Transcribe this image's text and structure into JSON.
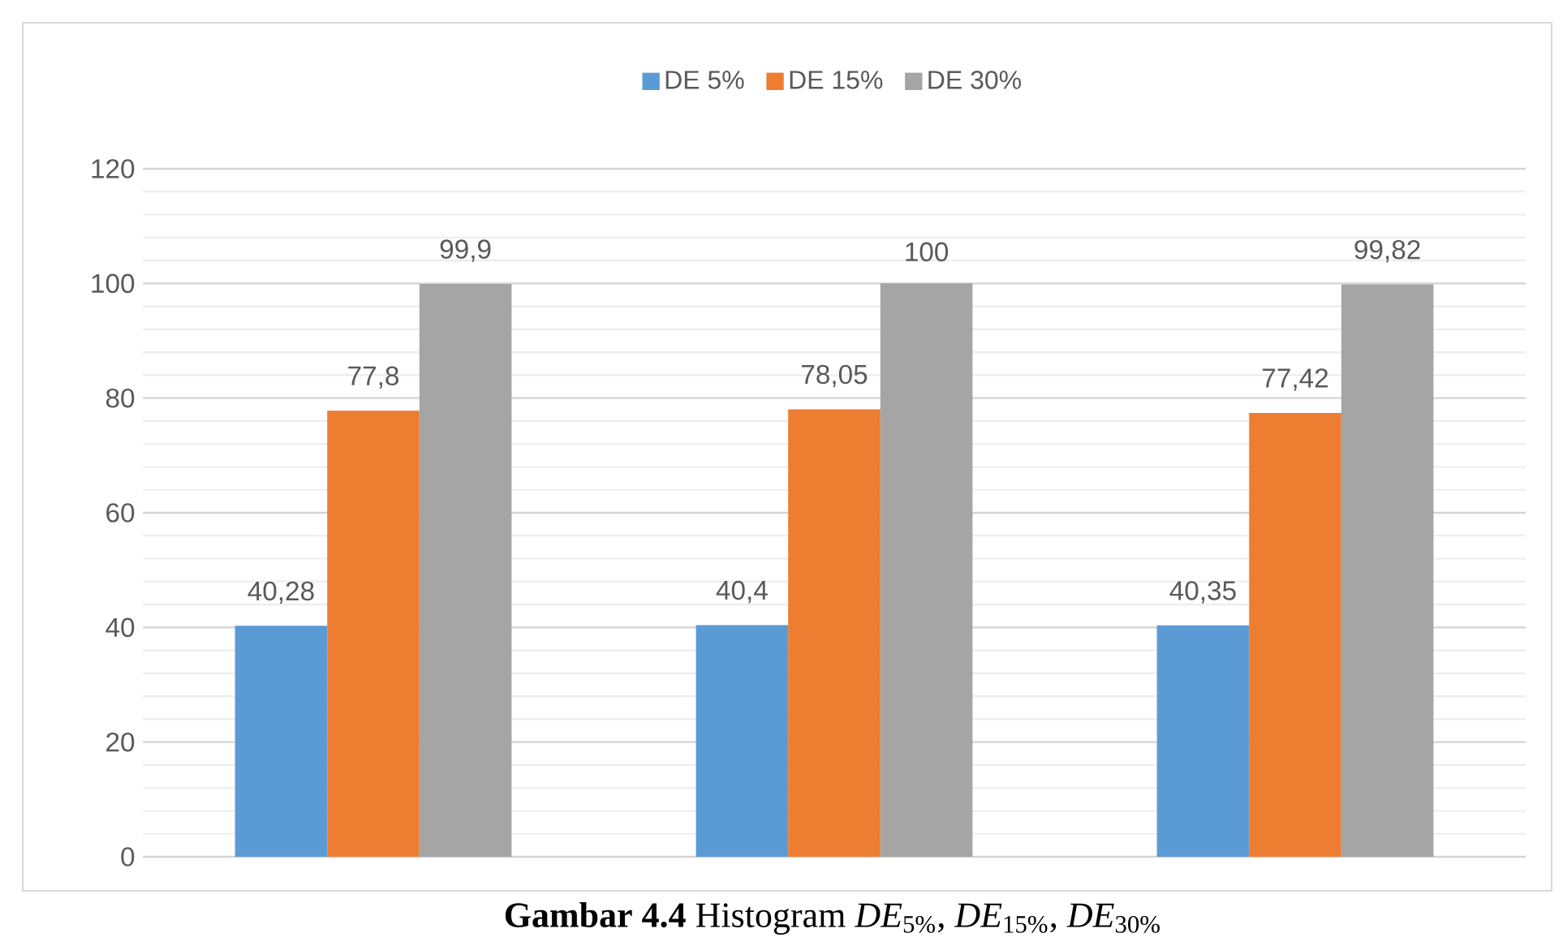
{
  "chart_data": {
    "type": "bar",
    "categories": [
      null,
      null,
      null
    ],
    "series": [
      {
        "name": "DE 5%",
        "color": "#5b9bd5",
        "values": [
          40.28,
          40.4,
          40.35
        ],
        "value_labels": [
          "40,28",
          "40,4",
          "40,35"
        ]
      },
      {
        "name": "DE 15%",
        "color": "#ed7d31",
        "values": [
          77.8,
          78.05,
          77.42
        ],
        "value_labels": [
          "77,8",
          "78,05",
          "77,42"
        ]
      },
      {
        "name": "DE 30%",
        "color": "#a5a5a5",
        "values": [
          99.9,
          100,
          99.82
        ],
        "value_labels": [
          "99,9",
          "100",
          "99,82"
        ]
      }
    ],
    "ylim": [
      0,
      120
    ],
    "yticks": [
      0,
      20,
      40,
      60,
      80,
      100,
      120
    ],
    "grid": "y",
    "legend": "top",
    "annotations": [
      "**Gambar 4.4** Histogram *DE*$_{5%}$, *DE*$_{15%}$, *DE*$_{30%}$"
    ]
  }
}
